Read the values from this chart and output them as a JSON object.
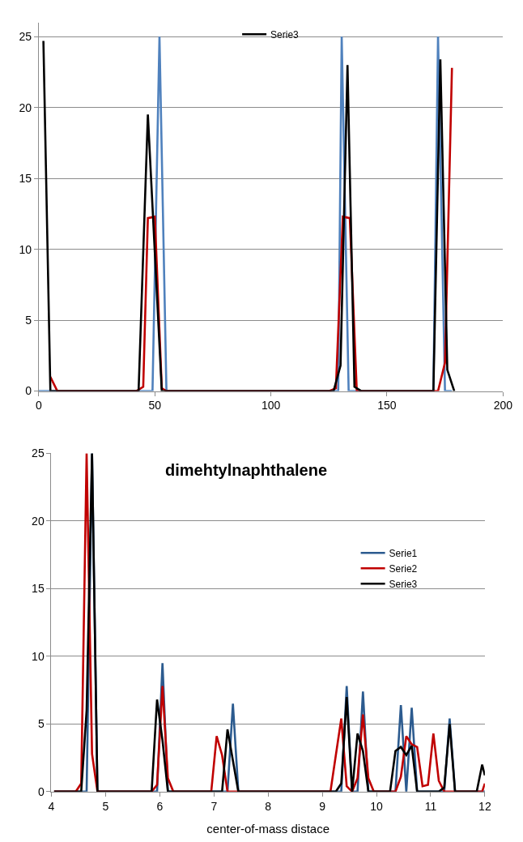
{
  "chart_data": [
    {
      "type": "line",
      "xlim": [
        0,
        200
      ],
      "xticks": [
        0,
        50,
        100,
        150,
        200
      ],
      "ylim": [
        0,
        26
      ],
      "yticks": [
        0,
        5,
        10,
        15,
        20,
        25
      ],
      "grid": "y",
      "legend": "top",
      "marker": "none",
      "line_style": "solid",
      "series": [
        {
          "color": "#4f81bd",
          "x": [
            0,
            49,
            52,
            55,
            129,
            130.5,
            133.5,
            170,
            172,
            175,
            178
          ],
          "values": [
            0,
            0,
            25,
            0,
            0,
            25,
            0,
            0,
            25,
            0,
            0
          ]
        },
        {
          "color": "#c00000",
          "x": [
            5,
            8,
            42,
            45,
            47,
            50,
            53,
            55,
            125,
            128,
            131,
            134,
            137,
            172,
            175,
            178
          ],
          "values": [
            1,
            0,
            0,
            0.3,
            12.2,
            12.3,
            0.2,
            0,
            0,
            0.2,
            12.3,
            12.2,
            0,
            0,
            2,
            22.8
          ]
        },
        {
          "name": "Serie3",
          "color": "#000000",
          "x": [
            2,
            5,
            43,
            47,
            53,
            127,
            130,
            133,
            136,
            139,
            170,
            173,
            176,
            179
          ],
          "values": [
            24.7,
            0,
            0,
            19.5,
            0,
            0,
            1.8,
            23,
            0.3,
            0,
            0,
            23.4,
            1.5,
            0
          ]
        }
      ]
    },
    {
      "type": "line",
      "title": "dimehtylnaphthalene",
      "xlabel": "center-of-mass distace",
      "xlim": [
        4,
        12
      ],
      "xticks": [
        4,
        5,
        6,
        7,
        8,
        9,
        10,
        11,
        12
      ],
      "ylim": [
        0,
        25
      ],
      "yticks": [
        0,
        5,
        10,
        15,
        20,
        25
      ],
      "grid": "y",
      "legend": "right",
      "marker": "none",
      "line_style": "solid",
      "series": [
        {
          "name": "Serie1",
          "color": "#2c5b8f",
          "x": [
            4.05,
            4.65,
            4.75,
            4.85,
            5.95,
            6.05,
            6.15,
            7.25,
            7.35,
            7.45,
            9.35,
            9.45,
            9.55,
            9.65,
            9.75,
            9.85,
            10.35,
            10.45,
            10.55,
            10.65,
            10.75,
            11.25,
            11.35,
            11.45,
            12
          ],
          "values": [
            0,
            0,
            25,
            0,
            0,
            9.5,
            0,
            0,
            6.5,
            0,
            0,
            7.8,
            0,
            0,
            7.4,
            0,
            0,
            6.4,
            0,
            6.2,
            0,
            0,
            5.4,
            0,
            0
          ]
        },
        {
          "name": "Serie2",
          "color": "#c00000",
          "x": [
            4.05,
            4.45,
            4.55,
            4.65,
            4.75,
            4.85,
            5.85,
            5.95,
            6.05,
            6.15,
            6.25,
            6.95,
            7.05,
            7.15,
            7.25,
            9.15,
            9.25,
            9.35,
            9.45,
            9.55,
            9.65,
            9.75,
            9.85,
            9.95,
            10.35,
            10.45,
            10.55,
            10.65,
            10.75,
            10.85,
            10.95,
            11.05,
            11.15,
            11.25,
            11.95,
            12
          ],
          "values": [
            0,
            0,
            0.6,
            25,
            2.8,
            0,
            0,
            0.5,
            7.8,
            1,
            0,
            0,
            4.1,
            2.7,
            0,
            0,
            2.7,
            5.4,
            0.4,
            0,
            1,
            5.7,
            1,
            0,
            0,
            1.1,
            4.1,
            3.5,
            3.3,
            0.4,
            0.5,
            4.3,
            0.8,
            0,
            0,
            0.6
          ]
        },
        {
          "name": "Serie3",
          "color": "#000000",
          "x": [
            4.05,
            4.55,
            4.65,
            4.75,
            4.85,
            5.85,
            5.95,
            6.05,
            6.15,
            7.15,
            7.25,
            7.35,
            7.45,
            9.25,
            9.35,
            9.45,
            9.55,
            9.65,
            9.75,
            9.85,
            10.25,
            10.35,
            10.45,
            10.55,
            10.65,
            10.75,
            11.15,
            11.25,
            11.35,
            11.45,
            11.85,
            11.95,
            12
          ],
          "values": [
            0,
            0,
            6,
            25,
            0,
            0,
            6.8,
            3.8,
            0,
            0,
            4.6,
            2.3,
            0,
            0,
            0.6,
            7,
            0,
            4.3,
            3,
            0,
            0,
            3,
            3.3,
            2.7,
            3.4,
            0,
            0,
            0.3,
            5,
            0,
            0,
            2,
            1.2
          ]
        }
      ]
    }
  ]
}
